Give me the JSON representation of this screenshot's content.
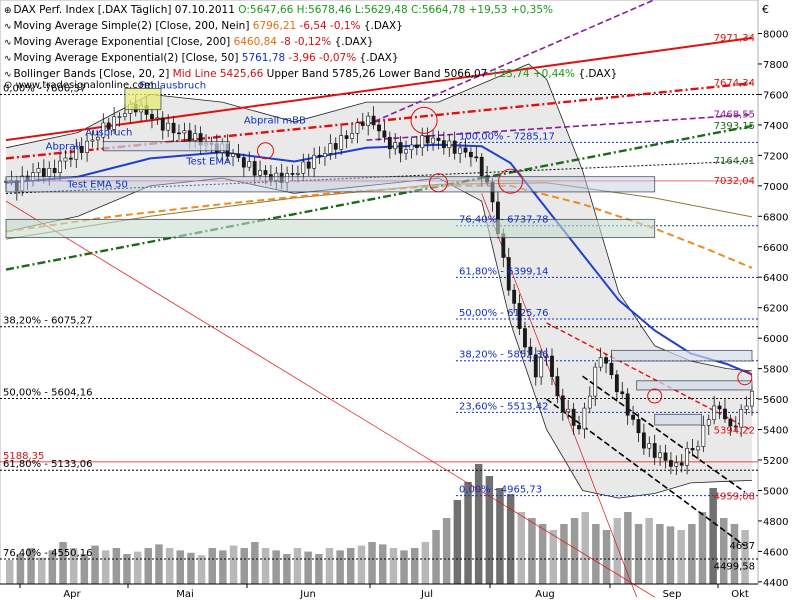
{
  "header": {
    "instrument": "DAX Perf. Index [.DAX Täglich]",
    "date": "07.10.2011",
    "ohlc": "O:5647,66 H:5678,46 L:5629,48 C:5664,78",
    "change": "+19,53 +0,35%"
  },
  "indicators": {
    "sma": {
      "label": "Moving Average Simple(2) [Close, 200, Nein]",
      "value": "6796,21",
      "change": "-6,54 -0,1%",
      "suffix": "{.DAX}"
    },
    "ema200": {
      "label": "Moving Average Exponential [Close, 200]",
      "value": "6460,84",
      "change": "-8 -0,12%",
      "suffix": "{.DAX}"
    },
    "ema50": {
      "label": "Moving Average Exponential(2) [Close, 50]",
      "value": "5761,78",
      "change": "-3,96 -0,07%",
      "suffix": "{.DAX}"
    },
    "bollinger": {
      "label": "Bollinger Bands [Close, 20, 2]",
      "mid": "Mid Line 5425,66",
      "bands": "Upper Band 5785,26 Lower Band 5066,07",
      "change": "+23,74 +0,44%",
      "suffix": "{.DAX}"
    }
  },
  "watermark": "www.tradesignalonline.com",
  "currency": "€",
  "colors": {
    "candle_up": "#ffffff",
    "candle_down": "#1a1a1a",
    "ema50": "#1f3fd0",
    "ema200": "#f08a1c",
    "sma200": "#8c7a3a",
    "resistance": "#e01010",
    "support": "#1a6a1a",
    "channel": "#8a1aa0",
    "fib": "#1030c0"
  },
  "chart_data": {
    "type": "candlestick",
    "xlabels": [
      "Apr",
      "Mai",
      "Jun",
      "Jul",
      "Aug",
      "Sep",
      "Okt"
    ],
    "ylim": [
      4300,
      8300
    ],
    "ticks": [
      4400,
      4600,
      4800,
      5000,
      5200,
      5400,
      5600,
      5800,
      6000,
      6200,
      6400,
      6600,
      6800,
      7000,
      7200,
      7400,
      7600,
      7800,
      8000
    ],
    "levels": [
      {
        "label": "0,00% - 7600,37",
        "value": 7600
      },
      {
        "label": "38,20% - 6075,27",
        "value": 6075
      },
      {
        "label": "50,00% - 5604,16",
        "value": 5604
      },
      {
        "label": "5188,35",
        "value": 5188
      },
      {
        "label": "61,80% - 5133,06",
        "value": 5133
      },
      {
        "label": "76,40% - 4550,16",
        "value": 4550
      },
      {
        "label": "100,00% - 7285,17",
        "value": 7285
      },
      {
        "label": "76,40% - 6737,78",
        "value": 6738
      },
      {
        "label": "61,80% - 6399,14",
        "value": 6399
      },
      {
        "label": "50,00% - 6125,76",
        "value": 6126
      },
      {
        "label": "38,20% - 5852,36",
        "value": 5852
      },
      {
        "label": "23,60% - 5513,42",
        "value": 5513
      },
      {
        "label": "0,00% - 4965,73",
        "value": 4966
      }
    ],
    "right_labels": [
      {
        "label": "7971,34",
        "value": 7971
      },
      {
        "label": "7674,34",
        "value": 7674
      },
      {
        "label": "7468,55",
        "value": 7468
      },
      {
        "label": "7393,15",
        "value": 7393
      },
      {
        "label": "7164,01",
        "value": 7164
      },
      {
        "label": "7032,04",
        "value": 7032
      },
      {
        "label": "5394,22",
        "value": 5394
      },
      {
        "label": "4959,08",
        "value": 4959
      },
      {
        "label": "4637",
        "value": 4637
      },
      {
        "label": "4499,58",
        "value": 4500
      }
    ],
    "annotations": [
      "Fehlausbruch",
      "Abprall mBB",
      "Abprall",
      "Ausbruch",
      "Test EMA",
      "Test EMA 50"
    ],
    "close_path": [
      [
        0,
        7030
      ],
      [
        3,
        7000
      ],
      [
        6,
        7060
      ],
      [
        9,
        7100
      ],
      [
        12,
        7080
      ],
      [
        15,
        7150
      ],
      [
        18,
        7200
      ],
      [
        21,
        7250
      ],
      [
        24,
        7300
      ],
      [
        27,
        7380
      ],
      [
        30,
        7430
      ],
      [
        33,
        7490
      ],
      [
        36,
        7520
      ],
      [
        39,
        7480
      ],
      [
        42,
        7420
      ],
      [
        45,
        7380
      ],
      [
        48,
        7350
      ],
      [
        51,
        7330
      ],
      [
        54,
        7290
      ],
      [
        57,
        7260
      ],
      [
        60,
        7240
      ],
      [
        63,
        7200
      ],
      [
        66,
        7150
      ],
      [
        69,
        7100
      ],
      [
        72,
        7070
      ],
      [
        75,
        7050
      ],
      [
        78,
        7060
      ],
      [
        81,
        7100
      ],
      [
        84,
        7150
      ],
      [
        87,
        7200
      ],
      [
        90,
        7250
      ],
      [
        93,
        7300
      ],
      [
        96,
        7350
      ],
      [
        99,
        7430
      ],
      [
        102,
        7420
      ],
      [
        105,
        7300
      ],
      [
        108,
        7250
      ],
      [
        111,
        7230
      ],
      [
        114,
        7280
      ],
      [
        117,
        7310
      ],
      [
        120,
        7290
      ],
      [
        123,
        7260
      ],
      [
        126,
        7230
      ],
      [
        129,
        7210
      ],
      [
        132,
        7100
      ],
      [
        135,
        6900
      ],
      [
        138,
        6500
      ],
      [
        141,
        6200
      ],
      [
        144,
        5950
      ],
      [
        147,
        5780
      ],
      [
        150,
        5900
      ],
      [
        153,
        5600
      ],
      [
        156,
        5500
      ],
      [
        159,
        5400
      ],
      [
        162,
        5650
      ],
      [
        165,
        5900
      ],
      [
        168,
        5750
      ],
      [
        171,
        5600
      ],
      [
        174,
        5450
      ],
      [
        177,
        5300
      ],
      [
        180,
        5250
      ],
      [
        183,
        5200
      ],
      [
        186,
        5150
      ],
      [
        189,
        5250
      ],
      [
        192,
        5300
      ],
      [
        195,
        5500
      ],
      [
        198,
        5550
      ],
      [
        201,
        5400
      ],
      [
        204,
        5500
      ],
      [
        207,
        5650
      ]
    ],
    "ema50_path": [
      [
        0,
        7020
      ],
      [
        20,
        7060
      ],
      [
        40,
        7180
      ],
      [
        60,
        7220
      ],
      [
        80,
        7160
      ],
      [
        100,
        7250
      ],
      [
        120,
        7270
      ],
      [
        132,
        7260
      ],
      [
        140,
        7150
      ],
      [
        150,
        6850
      ],
      [
        160,
        6550
      ],
      [
        170,
        6250
      ],
      [
        180,
        6050
      ],
      [
        190,
        5900
      ],
      [
        200,
        5830
      ],
      [
        207,
        5762
      ]
    ],
    "ema200_path": [
      [
        0,
        6700
      ],
      [
        30,
        6800
      ],
      [
        60,
        6880
      ],
      [
        90,
        6950
      ],
      [
        120,
        7000
      ],
      [
        140,
        7000
      ],
      [
        160,
        6880
      ],
      [
        180,
        6720
      ],
      [
        195,
        6580
      ],
      [
        207,
        6461
      ]
    ],
    "sma200_path": [
      [
        0,
        6650
      ],
      [
        40,
        6800
      ],
      [
        80,
        6920
      ],
      [
        120,
        7010
      ],
      [
        150,
        7020
      ],
      [
        180,
        6920
      ],
      [
        207,
        6796
      ]
    ],
    "bb_upper": [
      [
        0,
        7250
      ],
      [
        20,
        7350
      ],
      [
        40,
        7600
      ],
      [
        60,
        7550
      ],
      [
        80,
        7420
      ],
      [
        100,
        7550
      ],
      [
        120,
        7550
      ],
      [
        135,
        7700
      ],
      [
        145,
        7800
      ],
      [
        150,
        7700
      ],
      [
        160,
        7100
      ],
      [
        170,
        6300
      ],
      [
        180,
        5950
      ],
      [
        190,
        5850
      ],
      [
        200,
        5800
      ],
      [
        207,
        5785
      ]
    ],
    "bb_lower": [
      [
        0,
        6700
      ],
      [
        20,
        6800
      ],
      [
        40,
        7000
      ],
      [
        60,
        7050
      ],
      [
        80,
        6950
      ],
      [
        100,
        7000
      ],
      [
        120,
        7050
      ],
      [
        132,
        6900
      ],
      [
        140,
        6100
      ],
      [
        150,
        5400
      ],
      [
        160,
        5000
      ],
      [
        170,
        4950
      ],
      [
        180,
        4980
      ],
      [
        190,
        5050
      ],
      [
        200,
        5060
      ],
      [
        207,
        5066
      ]
    ],
    "volume": [
      0.2,
      0.25,
      0.3,
      0.22,
      0.28,
      0.35,
      0.3,
      0.25,
      0.32,
      0.28,
      0.3,
      0.25,
      0.27,
      0.3,
      0.33,
      0.3,
      0.28,
      0.26,
      0.24,
      0.3,
      0.28,
      0.32,
      0.3,
      0.35,
      0.3,
      0.28,
      0.25,
      0.3,
      0.27,
      0.25,
      0.3,
      0.28,
      0.3,
      0.32,
      0.35,
      0.33,
      0.3,
      0.28,
      0.3,
      0.35,
      0.45,
      0.55,
      0.7,
      0.85,
      1.0,
      0.9,
      0.8,
      0.75,
      0.6,
      0.55,
      0.5,
      0.45,
      0.5,
      0.55,
      0.6,
      0.5,
      0.45,
      0.55,
      0.6,
      0.5,
      0.55,
      0.5,
      0.48,
      0.45,
      0.5,
      0.6,
      0.8,
      0.55,
      0.5,
      0.45
    ]
  }
}
